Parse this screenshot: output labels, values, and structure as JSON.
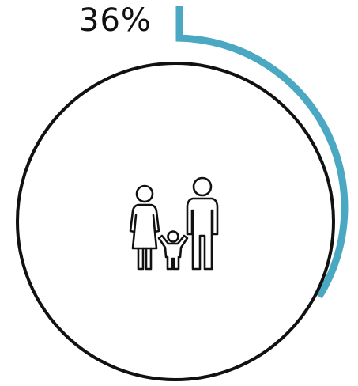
{
  "stat": {
    "label": "36%",
    "value": 36
  },
  "colors": {
    "accent": "#4BA8C2",
    "ring": "#111111",
    "icon": "#111111",
    "background": "#ffffff"
  },
  "icon": {
    "name": "family-icon"
  }
}
